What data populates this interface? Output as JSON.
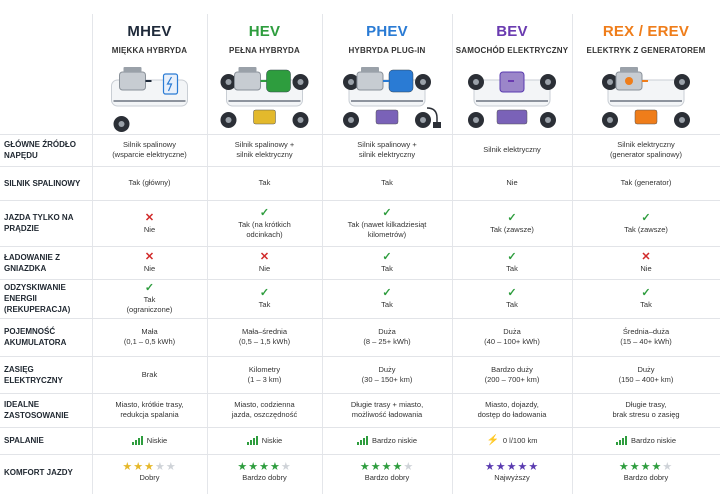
{
  "columns": [
    {
      "title": "MHEV",
      "subtitle": "MIĘKKA HYBRYDA",
      "color": "#1f2a3a"
    },
    {
      "title": "HEV",
      "subtitle": "PEŁNA HYBRYDA",
      "color": "#2e9d3e"
    },
    {
      "title": "PHEV",
      "subtitle": "HYBRYDA PLUG-IN",
      "color": "#2a7bd4"
    },
    {
      "title": "BEV",
      "subtitle": "SAMOCHÓD ELEKTRYCZNY",
      "color": "#6a3bb0"
    },
    {
      "title": "REX / EREV",
      "subtitle": "ELEKTRYK Z GENERATOREM",
      "color": "#ef7d1a"
    }
  ],
  "rows": [
    {
      "label": "GŁÓWNE ŹRÓDŁO NAPĘDU",
      "cells": [
        {
          "text": [
            "Silnik spalinowy",
            "(wsparcie elektryczne)"
          ]
        },
        {
          "text": [
            "Silnik spalinowy +",
            "silnik elektryczny"
          ]
        },
        {
          "text": [
            "Silnik spalinowy +",
            "silnik elektryczny"
          ]
        },
        {
          "text": [
            "Silnik elektryczny"
          ]
        },
        {
          "text": [
            "Silnik elektryczny",
            "(generator spalinowy)"
          ]
        }
      ]
    },
    {
      "label": "SILNIK SPALINOWY",
      "cells": [
        {
          "text": [
            "Tak (główny)"
          ]
        },
        {
          "text": [
            "Tak"
          ]
        },
        {
          "text": [
            "Tak"
          ]
        },
        {
          "text": [
            "Nie"
          ]
        },
        {
          "text": [
            "Tak (generator)"
          ]
        }
      ]
    },
    {
      "label": "JAZDA TYLKO NA PRĄDZIE",
      "cells": [
        {
          "mark": "no",
          "text": [
            "Nie"
          ]
        },
        {
          "mark": "ok",
          "text": [
            "Tak (na krótkich",
            "odcinkach)"
          ]
        },
        {
          "mark": "ok",
          "text": [
            "Tak (nawet kilkadziesiąt",
            "kilometrów)"
          ]
        },
        {
          "mark": "ok",
          "text": [
            "Tak (zawsze)"
          ]
        },
        {
          "mark": "ok",
          "text": [
            "Tak (zawsze)"
          ]
        }
      ]
    },
    {
      "label": "ŁADOWANIE Z GNIAZDKA",
      "cells": [
        {
          "mark": "no",
          "text": [
            "Nie"
          ]
        },
        {
          "mark": "no",
          "text": [
            "Nie"
          ]
        },
        {
          "mark": "ok",
          "text": [
            "Tak"
          ]
        },
        {
          "mark": "ok",
          "text": [
            "Tak"
          ]
        },
        {
          "mark": "no",
          "text": [
            "Nie"
          ]
        }
      ]
    },
    {
      "label": "ODZYSKIWANIE ENERGII (REKUPERACJA)",
      "cells": [
        {
          "mark": "ok",
          "text": [
            "Tak",
            "(ograniczone)"
          ]
        },
        {
          "mark": "ok",
          "text": [
            "Tak"
          ]
        },
        {
          "mark": "ok",
          "text": [
            "Tak"
          ]
        },
        {
          "mark": "ok",
          "text": [
            "Tak"
          ]
        },
        {
          "mark": "ok",
          "text": [
            "Tak"
          ]
        }
      ]
    },
    {
      "label": "POJEMNOŚĆ AKUMULATORA",
      "cells": [
        {
          "text": [
            "Mała",
            "(0,1 – 0,5 kWh)"
          ]
        },
        {
          "text": [
            "Mała–średnia",
            "(0,5 – 1,5 kWh)"
          ]
        },
        {
          "text": [
            "Duża",
            "(8 – 25+ kWh)"
          ]
        },
        {
          "text": [
            "Duża",
            "(40 – 100+ kWh)"
          ]
        },
        {
          "text": [
            "Średnia–duża",
            "(15 – 40+ kWh)"
          ]
        }
      ]
    },
    {
      "label": "ZASIĘG ELEKTRYCZNY",
      "cells": [
        {
          "text": [
            "Brak"
          ]
        },
        {
          "text": [
            "Kilometry",
            "(1 – 3 km)"
          ]
        },
        {
          "text": [
            "Duży",
            "(30 – 150+ km)"
          ]
        },
        {
          "text": [
            "Bardzo duży",
            "(200 – 700+ km)"
          ]
        },
        {
          "text": [
            "Duży",
            "(150 – 400+ km)"
          ]
        }
      ]
    },
    {
      "label": "IDEALNE ZASTOSOWANIE",
      "cells": [
        {
          "text": [
            "Miasto, krótkie trasy,",
            "redukcja spalania"
          ]
        },
        {
          "text": [
            "Miasto, codzienna",
            "jazda, oszczędność"
          ]
        },
        {
          "text": [
            "Długie trasy + miasto,",
            "możliwość ładowania"
          ]
        },
        {
          "text": [
            "Miasto, dojazdy,",
            "dostęp do ładowania"
          ]
        },
        {
          "text": [
            "Długie trasy,",
            "brak stresu o zasięg"
          ]
        }
      ]
    },
    {
      "label": "SPALANIE",
      "cells": [
        {
          "icon": "bars",
          "text": [
            "Niskie"
          ]
        },
        {
          "icon": "bars",
          "text": [
            "Niskie"
          ]
        },
        {
          "icon": "bars",
          "text": [
            "Bardzo niskie"
          ]
        },
        {
          "icon": "bolt",
          "text": [
            "0 l/100 km"
          ]
        },
        {
          "icon": "bars",
          "text": [
            "Bardzo niskie"
          ]
        }
      ]
    },
    {
      "label": "KOMFORT JAZDY",
      "cells": [
        {
          "stars": 3,
          "star_color": "#e6b82a",
          "text": [
            "Dobry"
          ]
        },
        {
          "stars": 4,
          "star_color": "#2e9d3e",
          "text": [
            "Bardzo dobry"
          ]
        },
        {
          "stars": 4,
          "star_color": "#2e9d3e",
          "text": [
            "Bardzo dobry"
          ]
        },
        {
          "stars": 5,
          "star_color": "#5a3bb0",
          "text": [
            "Najwyższy"
          ]
        },
        {
          "stars": 4,
          "star_color": "#2e9d3e",
          "text": [
            "Bardzo dobry"
          ]
        }
      ]
    }
  ],
  "icons": {
    "ok": "✓",
    "no": "✕",
    "bolt": "⚡",
    "star": "★"
  }
}
